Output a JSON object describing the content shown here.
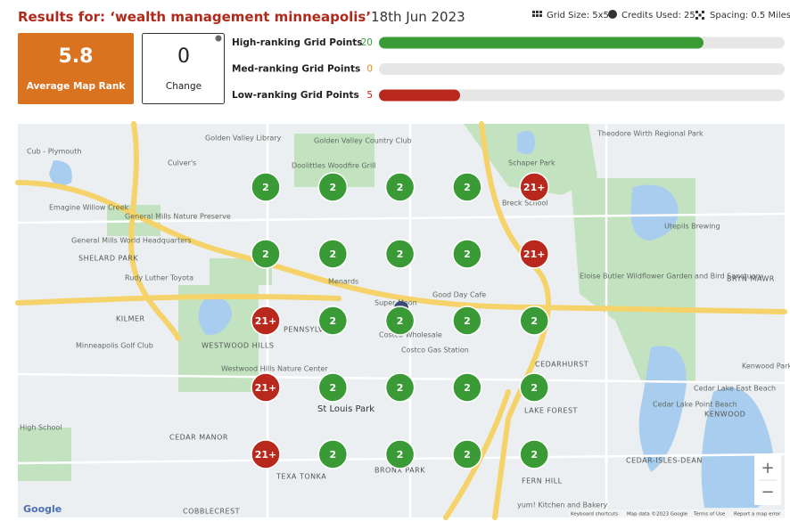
{
  "header": {
    "title_prefix": "Results for: ",
    "keyword": "‘wealth management minneapolis’",
    "date": "18th Jun 2023",
    "grid_size": "Grid Size: 5x5",
    "credits": "Credits Used: 25",
    "spacing": "Spacing: 0.5 Miles"
  },
  "stats": {
    "average_rank": {
      "value": "5.8",
      "label": "Average Map Rank"
    },
    "change": {
      "value": "0",
      "label": "Change"
    }
  },
  "ranking": [
    {
      "label": "High-ranking Grid Points",
      "count": 20,
      "color": "#3a9b36"
    },
    {
      "label": "Med-ranking Grid Points",
      "count": 0,
      "color": "#e08a1e"
    },
    {
      "label": "Low-ranking Grid Points",
      "count": 5,
      "color": "#b8281c"
    }
  ],
  "grid": {
    "rows": [
      [
        {
          "label": "2",
          "level": 0
        },
        {
          "label": "2",
          "level": 0
        },
        {
          "label": "2",
          "level": 0
        },
        {
          "label": "2",
          "level": 0
        },
        {
          "label": "21+",
          "level": 2
        }
      ],
      [
        {
          "label": "2",
          "level": 0
        },
        {
          "label": "2",
          "level": 0
        },
        {
          "label": "2",
          "level": 0
        },
        {
          "label": "2",
          "level": 0
        },
        {
          "label": "21+",
          "level": 2
        }
      ],
      [
        {
          "label": "21+",
          "level": 2
        },
        {
          "label": "2",
          "level": 0
        },
        {
          "label": "2",
          "level": 0
        },
        {
          "label": "2",
          "level": 0
        },
        {
          "label": "2",
          "level": 0
        }
      ],
      [
        {
          "label": "21+",
          "level": 2
        },
        {
          "label": "2",
          "level": 0
        },
        {
          "label": "2",
          "level": 0
        },
        {
          "label": "2",
          "level": 0
        },
        {
          "label": "2",
          "level": 0
        }
      ],
      [
        {
          "label": "21+",
          "level": 2
        },
        {
          "label": "2",
          "level": 0
        },
        {
          "label": "2",
          "level": 0
        },
        {
          "label": "2",
          "level": 0
        },
        {
          "label": "2",
          "level": 0
        }
      ]
    ]
  },
  "map": {
    "labels": [
      "Golden Valley Library",
      "Golden Valley Country Club",
      "Culver's",
      "Doolittles Woodfire Grill",
      "Schaper Park",
      "Theodore Wirth Regional Park",
      "Cub - Plymouth",
      "Emagine Willow Creek",
      "General Mills Nature Preserve",
      "General Mills World Headquarters",
      "SHELARD PARK",
      "Breck School",
      "Utepils Brewing",
      "Eloise Butler Wildflower Garden and Bird Sanctuary",
      "BRYN MAWR",
      "Rudy Luther Toyota",
      "Menards",
      "Super Moon",
      "Good Day Cafe",
      "KILMER",
      "Minneapolis Golf Club",
      "WESTWOOD HILLS",
      "PENNSYLVANIA",
      "Costco Wholesale",
      "Costco Gas Station",
      "CEDARHURST",
      "Kenwood Park",
      "Westwood Hills Nature Center",
      "St Louis Park",
      "LAKE FOREST",
      "Cedar Lake East Beach",
      "Cedar Lake Point Beach",
      "KENWOOD",
      "High School",
      "CEDAR MANOR",
      "TEXA TONKA",
      "BRONX PARK",
      "CEDAR-ISLES-DEAN",
      "FERN HILL",
      "COBBLECREST",
      "yum! Kitchen and Bakery"
    ],
    "brand": "Google",
    "zoom_in": "+",
    "zoom_out": "−",
    "footer": [
      "Keyboard shortcuts",
      "Map data ©2023 Google",
      "Terms of Use",
      "Report a map error"
    ]
  }
}
